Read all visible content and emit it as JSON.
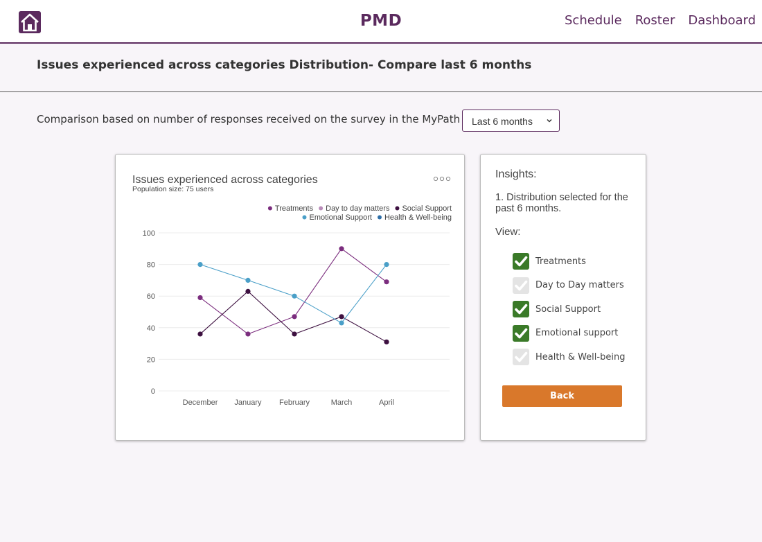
{
  "header": {
    "brand": "PMD",
    "nav": [
      "Schedule",
      "Roster",
      "Dashboard"
    ]
  },
  "page": {
    "title": "Issues experienced across categories Distribution- Compare last 6 months",
    "compare_text": "Comparison based on number of responses received on the survey in the MyPath application in",
    "range_value": "Last 6 months"
  },
  "colors": {
    "brand": "#5b2a5e",
    "treatments": "#7b2d7e",
    "day_to_day": "#b98cb9",
    "social_support": "#3d1040",
    "emotional_support": "#4a9fc8",
    "health": "#2f6fa8",
    "check_on": "#3a7a28",
    "back_button": "#d9782b"
  },
  "chart_data": {
    "type": "line",
    "title": "Issues experienced across categories",
    "subtitle": "Population size: 75 users",
    "categories": [
      "December",
      "January",
      "February",
      "March",
      "April"
    ],
    "ylim": [
      0,
      100
    ],
    "yticks": [
      0,
      20,
      40,
      60,
      80,
      100
    ],
    "grid": true,
    "legend_position": "top-right",
    "legend": [
      {
        "name": "Treatments",
        "color": "#7b2d7e"
      },
      {
        "name": "Day to day matters",
        "color": "#b98cb9"
      },
      {
        "name": "Social Support",
        "color": "#3d1040"
      },
      {
        "name": "Emotional Support",
        "color": "#4a9fc8"
      },
      {
        "name": "Health & Well-being",
        "color": "#2f6fa8"
      }
    ],
    "series": [
      {
        "name": "Treatments",
        "color": "#7b2d7e",
        "values": [
          59,
          36,
          47,
          90,
          69
        ]
      },
      {
        "name": "Social Support",
        "color": "#3d1040",
        "values": [
          36,
          63,
          36,
          47,
          31
        ]
      },
      {
        "name": "Emotional Support",
        "color": "#4a9fc8",
        "values": [
          80,
          70,
          60,
          43,
          80
        ]
      }
    ]
  },
  "insights": {
    "title": "Insights:",
    "text": "1. Distribution selected for the past 6 months.",
    "view_label": "View:",
    "view_items": [
      {
        "label": "Treatments",
        "checked": true
      },
      {
        "label": "Day to Day matters",
        "checked": false
      },
      {
        "label": "Social Support",
        "checked": true
      },
      {
        "label": "Emotional support",
        "checked": true
      },
      {
        "label": "Health & Well-being",
        "checked": false
      }
    ],
    "back_label": "Back"
  }
}
